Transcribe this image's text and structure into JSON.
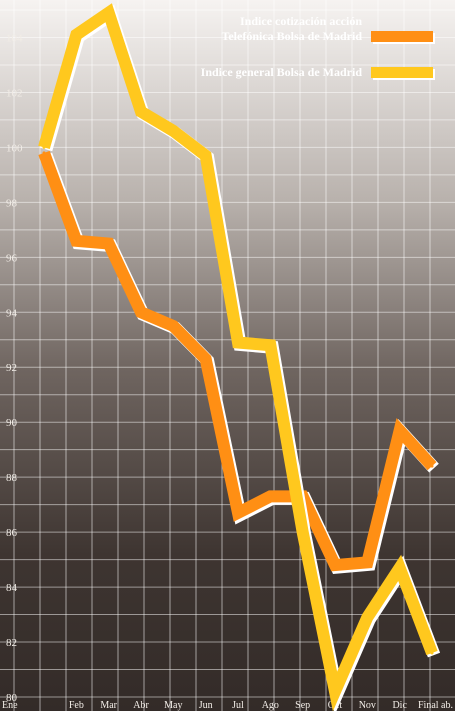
{
  "chart_data": {
    "type": "line",
    "categories": [
      "Ene",
      "Feb",
      "Mar",
      "Abr",
      "May",
      "Jun",
      "Jul",
      "Ago",
      "Sep",
      "Oct",
      "Nov",
      "Dic",
      "Final ab."
    ],
    "ylim": [
      80,
      105
    ],
    "yticks": [
      80,
      82,
      84,
      86,
      88,
      90,
      92,
      94,
      96,
      98,
      100,
      102,
      104
    ],
    "grid": true,
    "legend_position": "top-right",
    "series": [
      {
        "name": "Indice cotización acción Telefónica Bolsa de Madrid",
        "legend_lines": [
          "Indice cotización acción",
          "Telefónica Bolsa de Madrid"
        ],
        "color": "#ff8f14",
        "values": [
          99.8,
          96.6,
          96.5,
          94.0,
          93.5,
          92.3,
          86.7,
          87.3,
          87.3,
          84.8,
          84.9,
          89.7,
          88.4
        ]
      },
      {
        "name": "Indice general Bolsa de Madrid",
        "legend_lines": [
          "Indice general Bolsa de Madrid"
        ],
        "color": "#ffc81e",
        "values": [
          100.0,
          104.1,
          104.9,
          101.3,
          100.6,
          99.7,
          92.9,
          92.8,
          86.0,
          80.2,
          82.9,
          84.7,
          81.6
        ]
      }
    ]
  }
}
